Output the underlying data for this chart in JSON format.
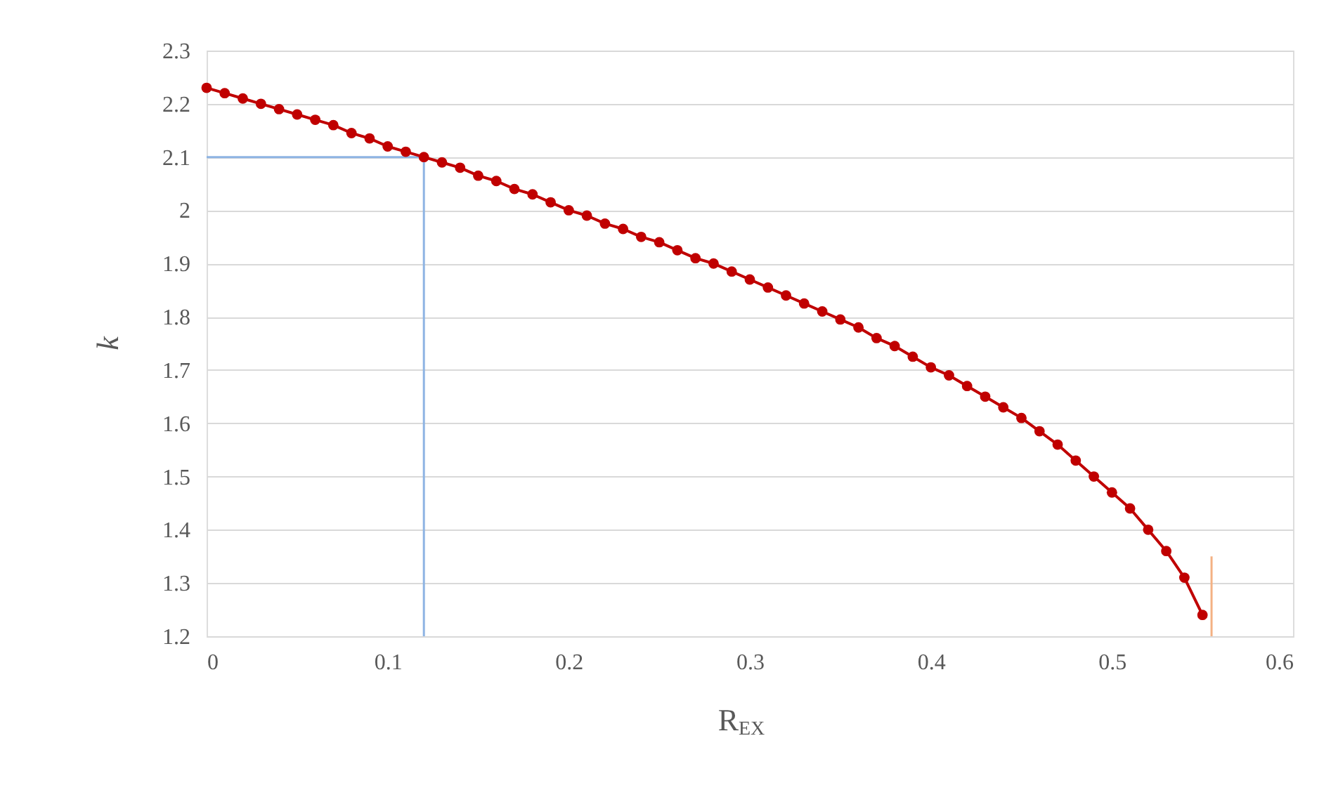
{
  "chart_data": {
    "type": "line",
    "xlabel": "R$_{EX}$",
    "ylabel": "k",
    "xlim": [
      0,
      0.6
    ],
    "ylim": [
      1.2,
      2.3
    ],
    "xticks": [
      0,
      0.1,
      0.2,
      0.3,
      0.4,
      0.5,
      0.6
    ],
    "yticks": [
      1.2,
      1.3,
      1.4,
      1.5,
      1.6,
      1.7,
      1.8,
      1.9,
      2,
      2.1,
      2.2,
      2.3
    ],
    "grid": "y",
    "marker": "circle",
    "line_style": "solid",
    "series": [
      {
        "color": "#8eb4e3",
        "marker": "none",
        "x": [
          0,
          0.12,
          0.12
        ],
        "values": [
          2.1,
          2.1,
          1.2
        ]
      },
      {
        "color": "#f4b183",
        "marker": "none",
        "x": [
          0.555,
          0.555
        ],
        "values": [
          1.2,
          1.35
        ]
      },
      {
        "color": "#c00000",
        "x": [
          0,
          0.01,
          0.02,
          0.03,
          0.04,
          0.05,
          0.06,
          0.07,
          0.08,
          0.09,
          0.1,
          0.11,
          0.12,
          0.13,
          0.14,
          0.15,
          0.16,
          0.17,
          0.18,
          0.19,
          0.2,
          0.21,
          0.22,
          0.23,
          0.24,
          0.25,
          0.26,
          0.27,
          0.28,
          0.29,
          0.3,
          0.31,
          0.32,
          0.33,
          0.34,
          0.35,
          0.36,
          0.37,
          0.38,
          0.39,
          0.4,
          0.41,
          0.42,
          0.43,
          0.44,
          0.45,
          0.46,
          0.47,
          0.48,
          0.49,
          0.5,
          0.51,
          0.52,
          0.53,
          0.54,
          0.55
        ],
        "values": [
          2.23,
          2.22,
          2.21,
          2.2,
          2.19,
          2.18,
          2.17,
          2.16,
          2.145,
          2.135,
          2.12,
          2.11,
          2.1,
          2.09,
          2.08,
          2.065,
          2.055,
          2.04,
          2.03,
          2.015,
          2.0,
          1.99,
          1.975,
          1.965,
          1.95,
          1.94,
          1.925,
          1.91,
          1.9,
          1.885,
          1.87,
          1.855,
          1.84,
          1.825,
          1.81,
          1.795,
          1.78,
          1.76,
          1.745,
          1.725,
          1.705,
          1.69,
          1.67,
          1.65,
          1.63,
          1.61,
          1.585,
          1.56,
          1.53,
          1.5,
          1.47,
          1.44,
          1.4,
          1.36,
          1.31,
          1.24
        ]
      }
    ]
  }
}
